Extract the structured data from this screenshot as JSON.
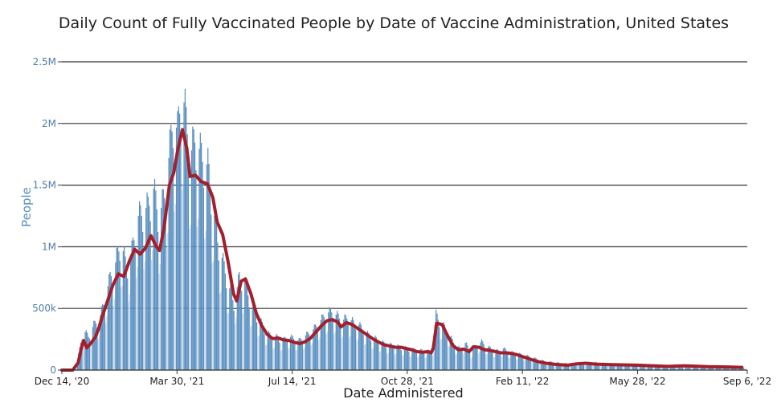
{
  "chart_data": {
    "type": "bar",
    "title": "Daily Count of Fully Vaccinated People by Date of Vaccine Administration, United States",
    "xlabel": "Date Administered",
    "ylabel": "People",
    "ylim": [
      0,
      2500000
    ],
    "yticks": [
      {
        "value": 0,
        "label": "0"
      },
      {
        "value": 500000,
        "label": "500k"
      },
      {
        "value": 1000000,
        "label": "1M"
      },
      {
        "value": 1500000,
        "label": "1.5M"
      },
      {
        "value": 2000000,
        "label": "2M"
      },
      {
        "value": 2500000,
        "label": "2.5M"
      }
    ],
    "xrange": [
      "2020-12-14",
      "2022-09-06"
    ],
    "xticks": [
      {
        "date": "2020-12-14",
        "label": "Dec 14, '20"
      },
      {
        "date": "2021-03-30",
        "label": "Mar 30, '21"
      },
      {
        "date": "2021-07-14",
        "label": "Jul 14, '21"
      },
      {
        "date": "2021-10-28",
        "label": "Oct 28, '21"
      },
      {
        "date": "2022-02-11",
        "label": "Feb 11, '22"
      },
      {
        "date": "2022-05-28",
        "label": "May 28, '22"
      },
      {
        "date": "2022-09-06",
        "label": "Sep 6, '22"
      }
    ],
    "grid": true,
    "colors": {
      "bars": "#5b8fbf",
      "moving_average": "#a31f2b"
    },
    "series": [
      {
        "kind": "daily_bars",
        "points": [
          [
            "2020-12-14",
            0
          ],
          [
            "2020-12-24",
            0
          ],
          [
            "2020-12-28",
            80000
          ],
          [
            "2021-01-02",
            360000
          ],
          [
            "2021-01-07",
            300000
          ],
          [
            "2021-01-12",
            400000
          ],
          [
            "2021-01-17",
            450000
          ],
          [
            "2021-01-22",
            620000
          ],
          [
            "2021-01-27",
            820000
          ],
          [
            "2021-02-01",
            950000
          ],
          [
            "2021-02-06",
            1150000
          ],
          [
            "2021-02-11",
            900000
          ],
          [
            "2021-02-16",
            1050000
          ],
          [
            "2021-02-21",
            1350000
          ],
          [
            "2021-02-26",
            1400000
          ],
          [
            "2021-03-03",
            1450000
          ],
          [
            "2021-03-08",
            1600000
          ],
          [
            "2021-03-13",
            1350000
          ],
          [
            "2021-03-18",
            1550000
          ],
          [
            "2021-03-23",
            1950000
          ],
          [
            "2021-03-26",
            2250000
          ],
          [
            "2021-03-30",
            2100000
          ],
          [
            "2021-04-03",
            2520000
          ],
          [
            "2021-04-07",
            2200000
          ],
          [
            "2021-04-11",
            1900000
          ],
          [
            "2021-04-15",
            2050000
          ],
          [
            "2021-04-19",
            1950000
          ],
          [
            "2021-04-23",
            1850000
          ],
          [
            "2021-04-27",
            1800000
          ],
          [
            "2021-05-01",
            1500000
          ],
          [
            "2021-05-06",
            1150000
          ],
          [
            "2021-05-11",
            950000
          ],
          [
            "2021-05-16",
            750000
          ],
          [
            "2021-05-21",
            600000
          ],
          [
            "2021-05-26",
            820000
          ],
          [
            "2021-05-31",
            780000
          ],
          [
            "2021-06-05",
            600000
          ],
          [
            "2021-06-10",
            500000
          ],
          [
            "2021-06-15",
            420000
          ],
          [
            "2021-06-20",
            330000
          ],
          [
            "2021-06-25",
            300000
          ],
          [
            "2021-06-30",
            290000
          ],
          [
            "2021-07-05",
            260000
          ],
          [
            "2021-07-10",
            300000
          ],
          [
            "2021-07-15",
            280000
          ],
          [
            "2021-07-20",
            260000
          ],
          [
            "2021-07-25",
            300000
          ],
          [
            "2021-07-30",
            330000
          ],
          [
            "2021-08-04",
            380000
          ],
          [
            "2021-08-09",
            440000
          ],
          [
            "2021-08-14",
            500000
          ],
          [
            "2021-08-19",
            520000
          ],
          [
            "2021-08-24",
            480000
          ],
          [
            "2021-08-29",
            440000
          ],
          [
            "2021-09-03",
            470000
          ],
          [
            "2021-09-08",
            420000
          ],
          [
            "2021-09-13",
            400000
          ],
          [
            "2021-09-18",
            350000
          ],
          [
            "2021-09-23",
            300000
          ],
          [
            "2021-09-28",
            280000
          ],
          [
            "2021-10-03",
            250000
          ],
          [
            "2021-10-08",
            230000
          ],
          [
            "2021-10-13",
            220000
          ],
          [
            "2021-10-18",
            210000
          ],
          [
            "2021-10-23",
            200000
          ],
          [
            "2021-10-28",
            190000
          ],
          [
            "2021-11-02",
            180000
          ],
          [
            "2021-11-07",
            175000
          ],
          [
            "2021-11-12",
            170000
          ],
          [
            "2021-11-17",
            165000
          ],
          [
            "2021-11-20",
            200000
          ],
          [
            "2021-11-23",
            490000
          ],
          [
            "2021-11-27",
            420000
          ],
          [
            "2021-12-01",
            380000
          ],
          [
            "2021-12-05",
            310000
          ],
          [
            "2021-12-10",
            230000
          ],
          [
            "2021-12-15",
            190000
          ],
          [
            "2021-12-20",
            240000
          ],
          [
            "2021-12-25",
            160000
          ],
          [
            "2021-12-30",
            220000
          ],
          [
            "2022-01-04",
            250000
          ],
          [
            "2022-01-09",
            210000
          ],
          [
            "2022-01-14",
            180000
          ],
          [
            "2022-01-19",
            170000
          ],
          [
            "2022-01-24",
            190000
          ],
          [
            "2022-01-29",
            160000
          ],
          [
            "2022-02-03",
            150000
          ],
          [
            "2022-02-08",
            140000
          ],
          [
            "2022-02-13",
            130000
          ],
          [
            "2022-02-18",
            115000
          ],
          [
            "2022-02-23",
            100000
          ],
          [
            "2022-02-28",
            85000
          ],
          [
            "2022-03-05",
            75000
          ],
          [
            "2022-03-15",
            65000
          ],
          [
            "2022-03-25",
            55000
          ],
          [
            "2022-04-05",
            60000
          ],
          [
            "2022-04-15",
            70000
          ],
          [
            "2022-04-25",
            60000
          ],
          [
            "2022-05-05",
            55000
          ],
          [
            "2022-05-15",
            52000
          ],
          [
            "2022-05-28",
            48000
          ],
          [
            "2022-06-10",
            45000
          ],
          [
            "2022-06-25",
            40000
          ],
          [
            "2022-07-10",
            42000
          ],
          [
            "2022-07-25",
            38000
          ],
          [
            "2022-08-10",
            35000
          ],
          [
            "2022-08-25",
            30000
          ],
          [
            "2022-09-04",
            25000
          ]
        ]
      },
      {
        "kind": "moving_average",
        "points": [
          [
            "2020-12-14",
            0
          ],
          [
            "2020-12-24",
            0
          ],
          [
            "2020-12-29",
            60000
          ],
          [
            "2021-01-01",
            180000
          ],
          [
            "2021-01-03",
            240000
          ],
          [
            "2021-01-06",
            180000
          ],
          [
            "2021-01-09",
            210000
          ],
          [
            "2021-01-14",
            270000
          ],
          [
            "2021-01-17",
            340000
          ],
          [
            "2021-01-20",
            430000
          ],
          [
            "2021-01-25",
            560000
          ],
          [
            "2021-01-30",
            690000
          ],
          [
            "2021-02-04",
            780000
          ],
          [
            "2021-02-09",
            760000
          ],
          [
            "2021-02-14",
            880000
          ],
          [
            "2021-02-19",
            980000
          ],
          [
            "2021-02-24",
            940000
          ],
          [
            "2021-03-01",
            990000
          ],
          [
            "2021-03-06",
            1090000
          ],
          [
            "2021-03-11",
            1000000
          ],
          [
            "2021-03-14",
            970000
          ],
          [
            "2021-03-18",
            1150000
          ],
          [
            "2021-03-23",
            1500000
          ],
          [
            "2021-03-27",
            1600000
          ],
          [
            "2021-03-31",
            1800000
          ],
          [
            "2021-04-04",
            1950000
          ],
          [
            "2021-04-08",
            1800000
          ],
          [
            "2021-04-11",
            1570000
          ],
          [
            "2021-04-16",
            1580000
          ],
          [
            "2021-04-21",
            1530000
          ],
          [
            "2021-04-27",
            1510000
          ],
          [
            "2021-05-02",
            1400000
          ],
          [
            "2021-05-06",
            1200000
          ],
          [
            "2021-05-11",
            1100000
          ],
          [
            "2021-05-16",
            880000
          ],
          [
            "2021-05-21",
            620000
          ],
          [
            "2021-05-24",
            560000
          ],
          [
            "2021-05-28",
            720000
          ],
          [
            "2021-06-01",
            740000
          ],
          [
            "2021-06-06",
            620000
          ],
          [
            "2021-06-11",
            460000
          ],
          [
            "2021-06-16",
            360000
          ],
          [
            "2021-06-21",
            290000
          ],
          [
            "2021-06-26",
            255000
          ],
          [
            "2021-07-01",
            260000
          ],
          [
            "2021-07-06",
            245000
          ],
          [
            "2021-07-11",
            240000
          ],
          [
            "2021-07-16",
            225000
          ],
          [
            "2021-07-21",
            215000
          ],
          [
            "2021-07-26",
            230000
          ],
          [
            "2021-07-31",
            260000
          ],
          [
            "2021-08-05",
            310000
          ],
          [
            "2021-08-10",
            360000
          ],
          [
            "2021-08-15",
            400000
          ],
          [
            "2021-08-20",
            410000
          ],
          [
            "2021-08-25",
            390000
          ],
          [
            "2021-08-28",
            350000
          ],
          [
            "2021-09-02",
            385000
          ],
          [
            "2021-09-07",
            370000
          ],
          [
            "2021-09-12",
            340000
          ],
          [
            "2021-09-17",
            310000
          ],
          [
            "2021-09-22",
            280000
          ],
          [
            "2021-09-27",
            250000
          ],
          [
            "2021-10-02",
            225000
          ],
          [
            "2021-10-07",
            205000
          ],
          [
            "2021-10-12",
            195000
          ],
          [
            "2021-10-17",
            185000
          ],
          [
            "2021-10-22",
            185000
          ],
          [
            "2021-10-27",
            175000
          ],
          [
            "2021-11-01",
            165000
          ],
          [
            "2021-11-06",
            150000
          ],
          [
            "2021-11-11",
            145000
          ],
          [
            "2021-11-16",
            150000
          ],
          [
            "2021-11-19",
            140000
          ],
          [
            "2021-11-21",
            180000
          ],
          [
            "2021-11-24",
            380000
          ],
          [
            "2021-11-29",
            370000
          ],
          [
            "2021-12-04",
            280000
          ],
          [
            "2021-12-09",
            200000
          ],
          [
            "2021-12-14",
            165000
          ],
          [
            "2021-12-19",
            170000
          ],
          [
            "2021-12-24",
            150000
          ],
          [
            "2021-12-28",
            190000
          ],
          [
            "2022-01-02",
            185000
          ],
          [
            "2022-01-07",
            165000
          ],
          [
            "2022-01-12",
            160000
          ],
          [
            "2022-01-17",
            150000
          ],
          [
            "2022-01-22",
            140000
          ],
          [
            "2022-01-27",
            140000
          ],
          [
            "2022-02-01",
            135000
          ],
          [
            "2022-02-06",
            125000
          ],
          [
            "2022-02-11",
            110000
          ],
          [
            "2022-02-16",
            95000
          ],
          [
            "2022-02-21",
            80000
          ],
          [
            "2022-02-26",
            68000
          ],
          [
            "2022-03-05",
            55000
          ],
          [
            "2022-03-15",
            45000
          ],
          [
            "2022-03-25",
            40000
          ],
          [
            "2022-04-01",
            50000
          ],
          [
            "2022-04-10",
            55000
          ],
          [
            "2022-04-20",
            48000
          ],
          [
            "2022-05-01",
            45000
          ],
          [
            "2022-05-15",
            42000
          ],
          [
            "2022-05-28",
            40000
          ],
          [
            "2022-06-10",
            35000
          ],
          [
            "2022-06-25",
            30000
          ],
          [
            "2022-07-10",
            35000
          ],
          [
            "2022-07-20",
            32000
          ],
          [
            "2022-08-01",
            28000
          ],
          [
            "2022-08-15",
            26000
          ],
          [
            "2022-09-01",
            22000
          ]
        ]
      }
    ]
  }
}
